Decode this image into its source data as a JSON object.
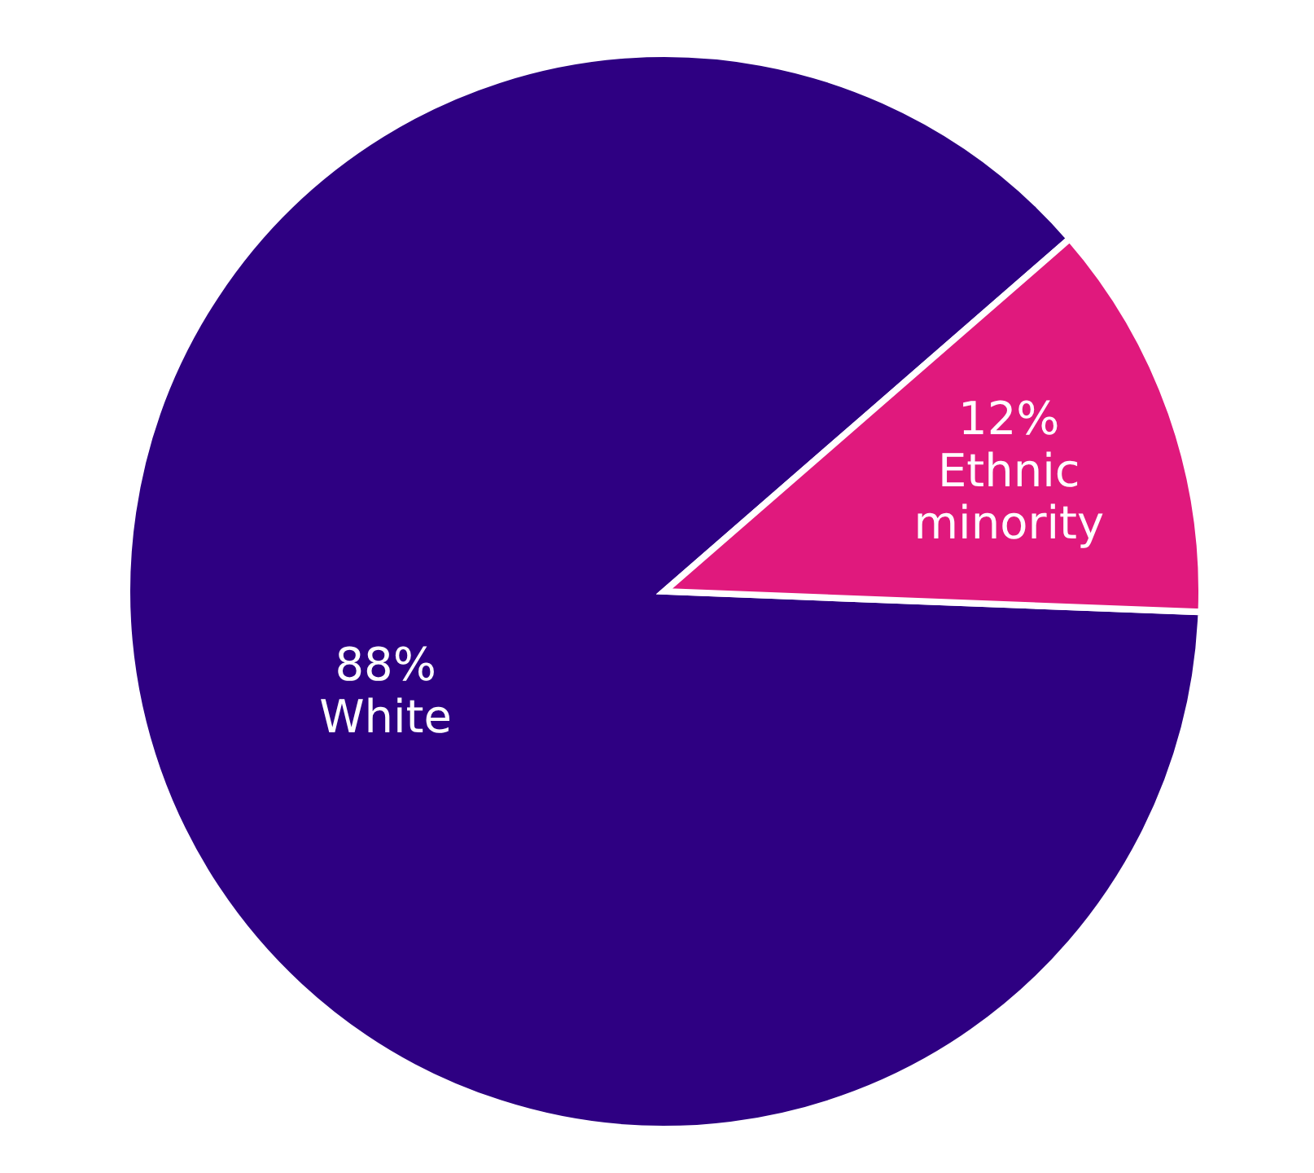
{
  "chart_data": {
    "type": "pie",
    "categories": [
      "White",
      "Ethnic minority"
    ],
    "values": [
      88,
      12
    ],
    "value_labels": [
      "88%",
      "12%"
    ],
    "colors": [
      "#2e0082",
      "#e0197d"
    ],
    "legend": false
  }
}
